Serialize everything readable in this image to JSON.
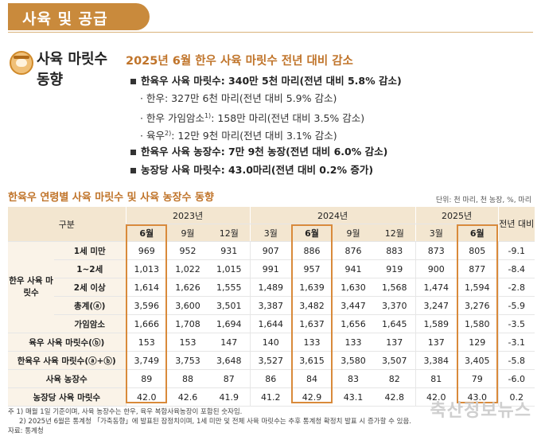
{
  "banner": "사육 및 공급",
  "section": {
    "title_line1": "사육 마릿수",
    "title_line2": "동향"
  },
  "headline": "2025년 6월 한우 사육 마릿수 전년 대비 감소",
  "bullets": {
    "main1": "한육우 사육 마릿수: 340만 5천 마리(전년 대비 5.8% 감소)",
    "sub1": "한우: 327만 6천 마리(전년 대비 5.9% 감소)",
    "sub2_pre": "한우 가임암소",
    "sub2_sup": "1)",
    "sub2_post": ": 158만 마리(전년 대비 3.5% 감소)",
    "sub3_pre": "육우",
    "sub3_sup": "2)",
    "sub3_post": ": 12만 9천 마리(전년 대비 3.1% 감소)",
    "main2": "한육우 사육 농장수: 7만 9천 농장(전년 대비 6.0% 감소)",
    "main3": "농장당 사육 마릿수: 43.0마리(전년 대비 0.2% 증가)"
  },
  "table_title": "한육우 연령별 사육 마릿수 및 사육 농장수 동향",
  "unit": "단위: 천 마리, 천 농장, %, 마리",
  "header": {
    "col0": "구분",
    "years": [
      "2023년",
      "2024년",
      "2025년"
    ],
    "yoy": "전년 대비",
    "months": [
      "6월",
      "9월",
      "12월",
      "3월",
      "6월",
      "9월",
      "12월",
      "3월",
      "6월"
    ]
  },
  "group_label": "한우 사육 마릿수",
  "rows": [
    {
      "label": "1세 미만",
      "values": [
        "969",
        "952",
        "931",
        "907",
        "886",
        "876",
        "883",
        "873",
        "805"
      ],
      "yoy": "-9.1"
    },
    {
      "label": "1~2세",
      "values": [
        "1,013",
        "1,022",
        "1,015",
        "991",
        "957",
        "941",
        "919",
        "900",
        "877"
      ],
      "yoy": "-8.4"
    },
    {
      "label": "2세 이상",
      "values": [
        "1,614",
        "1,626",
        "1,555",
        "1,489",
        "1,639",
        "1,630",
        "1,568",
        "1,474",
        "1,594"
      ],
      "yoy": "-2.8"
    },
    {
      "label": "총계(ⓐ)",
      "values": [
        "3,596",
        "3,600",
        "3,501",
        "3,387",
        "3,482",
        "3,447",
        "3,370",
        "3,247",
        "3,276"
      ],
      "yoy": "-5.9"
    },
    {
      "label": "가임암소",
      "values": [
        "1,666",
        "1,708",
        "1,694",
        "1,644",
        "1,637",
        "1,656",
        "1,645",
        "1,589",
        "1,580"
      ],
      "yoy": "-3.5"
    },
    {
      "label": "육우 사육 마릿수(ⓑ)",
      "values": [
        "153",
        "153",
        "147",
        "140",
        "133",
        "133",
        "137",
        "137",
        "129"
      ],
      "yoy": "-3.1"
    },
    {
      "label": "한육우 사육 마릿수(ⓐ+ⓑ)",
      "values": [
        "3,749",
        "3,753",
        "3,648",
        "3,527",
        "3,615",
        "3,580",
        "3,507",
        "3,384",
        "3,405"
      ],
      "yoy": "-5.8"
    },
    {
      "label": "사육 농장수",
      "values": [
        "89",
        "88",
        "87",
        "86",
        "84",
        "83",
        "82",
        "81",
        "79"
      ],
      "yoy": "-6.0"
    },
    {
      "label": "농장당 사육 마릿수",
      "values": [
        "42.0",
        "42.6",
        "41.9",
        "41.2",
        "42.9",
        "43.1",
        "42.8",
        "42.0",
        "43.0"
      ],
      "yoy": "0.2"
    }
  ],
  "footnotes": {
    "f1": "주  1) 매월 1일 기준이며, 사육 농장수는 한우, 육우 복합사육농장이 포함된 숫자임.",
    "f2": "2) 2025년 6월은 통계청 「가축동향」에 발표된 잠정치이며, 1세 미만 및 전체 사육 마릿수는 추후 통계청 확정치 발표 시 증가할 수 있음.",
    "source": "자료: 통계청"
  },
  "watermark": "축산정보뉴스",
  "colors": {
    "accent": "#c98a3c",
    "highlight_border": "#d98a3a",
    "header_bg": "#f3e6d0"
  }
}
